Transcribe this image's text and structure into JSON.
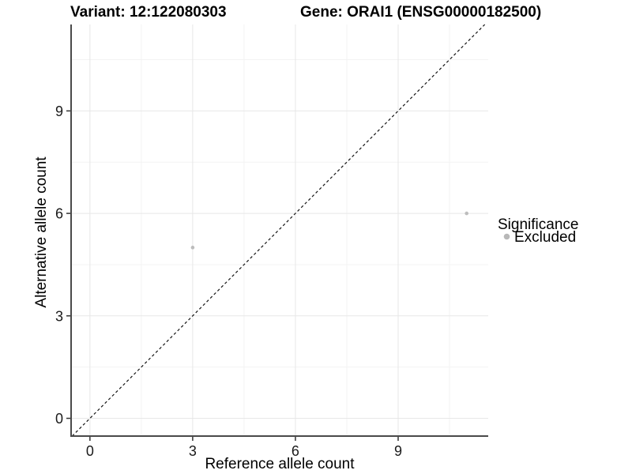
{
  "chart_data": {
    "type": "scatter",
    "title_left": "Variant: 12:122080303",
    "title_right": "Gene: ORAI1 (ENSG00000182500)",
    "xlabel": "Reference allele count",
    "ylabel": "Alternative allele count",
    "xlim": [
      -0.55,
      11.63
    ],
    "ylim": [
      -0.52,
      11.53
    ],
    "x_ticks": [
      0,
      3,
      6,
      9
    ],
    "y_ticks": [
      0,
      3,
      6,
      9
    ],
    "x_minor_ticks": [
      1.5,
      4.5,
      7.5,
      10.5
    ],
    "y_minor_ticks": [
      1.5,
      4.5,
      7.5,
      10.5
    ],
    "grid": "major-and-minor",
    "series": [
      {
        "name": "Excluded",
        "marker": "circle",
        "color": "#bdbdbd",
        "points": [
          {
            "x": 3,
            "y": 5
          },
          {
            "x": 11,
            "y": 6
          }
        ]
      }
    ],
    "reference_line": {
      "kind": "y=x",
      "style": "dashed",
      "color": "#141414"
    },
    "legend": {
      "title": "Significance",
      "position": "right",
      "items": [
        {
          "label": "Excluded",
          "marker": "circle",
          "color": "#b8b8b8"
        }
      ]
    },
    "colors": {
      "background": "#ffffff",
      "grid_major": "#e7e7e7",
      "grid_minor": "#f3f3f3",
      "axis_line": "#4a4a4a",
      "tick_mark": "#333333",
      "point": "#bdbdbd",
      "text": "#000000"
    }
  }
}
